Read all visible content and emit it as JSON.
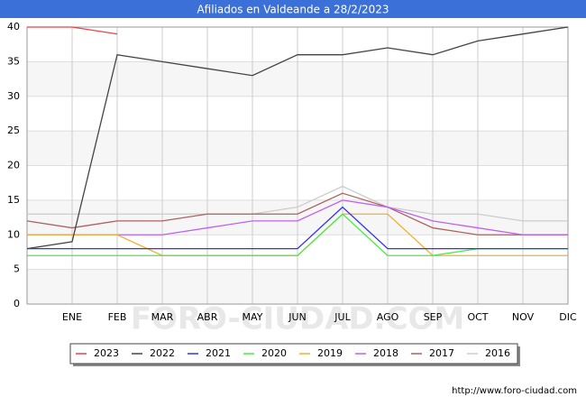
{
  "chart_data": {
    "type": "line",
    "title": "Afiliados en Valdeande a 28/2/2023",
    "categories": [
      null,
      "ENE",
      "FEB",
      "MAR",
      "ABR",
      "MAY",
      "JUN",
      "JUL",
      "AGO",
      "SEP",
      "OCT",
      "NOV",
      "DIC"
    ],
    "series": [
      {
        "name": "2023",
        "color": "#e64545",
        "values": [
          40,
          40,
          39,
          null,
          null,
          null,
          null,
          null,
          null,
          null,
          null,
          null,
          null
        ]
      },
      {
        "name": "2022",
        "color": "#444444",
        "values": [
          8,
          9,
          36,
          35,
          34,
          33,
          36,
          36,
          37,
          36,
          38,
          39,
          40
        ]
      },
      {
        "name": "2021",
        "color": "#3333ee",
        "values": [
          8,
          8,
          8,
          8,
          8,
          8,
          8,
          14,
          8,
          8,
          8,
          8,
          8
        ]
      },
      {
        "name": "2020",
        "color": "#44ee44",
        "values": [
          7,
          7,
          7,
          7,
          7,
          7,
          7,
          13,
          7,
          7,
          8,
          8,
          8
        ]
      },
      {
        "name": "2019",
        "color": "#f0b030",
        "values": [
          10,
          10,
          10,
          7,
          7,
          7,
          7,
          13,
          13,
          7,
          7,
          7,
          7
        ]
      },
      {
        "name": "2018",
        "color": "#c060f0",
        "values": [
          10,
          10,
          10,
          10,
          11,
          12,
          12,
          15,
          14,
          12,
          11,
          10,
          10
        ]
      },
      {
        "name": "2017",
        "color": "#b06060",
        "values": [
          12,
          11,
          12,
          12,
          13,
          13,
          13,
          16,
          14,
          11,
          10,
          10,
          10
        ]
      },
      {
        "name": "2016",
        "color": "#cccccc",
        "values": [
          13,
          13,
          13,
          13,
          13,
          13,
          14,
          17,
          14,
          13,
          13,
          12,
          12
        ]
      }
    ],
    "ylim": [
      0,
      40
    ],
    "yticks": [
      0,
      5,
      10,
      15,
      20,
      25,
      30,
      35,
      40
    ],
    "grid": true,
    "legend": "bottom",
    "watermark": "FORO-CIUDAD.COM",
    "source": "http://www.foro-ciudad.com"
  }
}
